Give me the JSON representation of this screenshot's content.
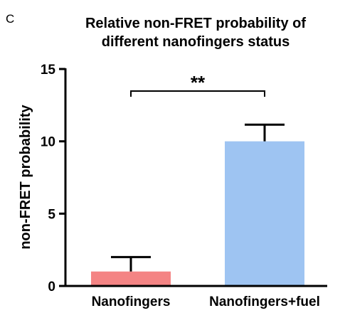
{
  "panel_label": "C",
  "chart_data": {
    "type": "bar",
    "title_lines": [
      "Relative non-FRET probability of",
      "different nanofingers status"
    ],
    "xlabel": "",
    "ylabel": "non-FRET probability",
    "categories": [
      "Nanofingers",
      "Nanofingers+fuel"
    ],
    "values": [
      1.0,
      10.0
    ],
    "errors": [
      1.0,
      1.15
    ],
    "colors": [
      "#f48484",
      "#9ec4f2"
    ],
    "ylim": [
      0,
      15
    ],
    "yticks": [
      0,
      5,
      10,
      15
    ],
    "grid": false,
    "significance": {
      "between": [
        0,
        1
      ],
      "label": "**"
    }
  }
}
